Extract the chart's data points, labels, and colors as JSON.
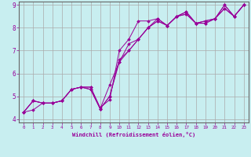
{
  "xlabel": "Windchill (Refroidissement éolien,°C)",
  "bg_color": "#c8eef0",
  "grid_color": "#aaaaaa",
  "line_color": "#990099",
  "xlim": [
    -0.5,
    23.5
  ],
  "ylim": [
    3.85,
    9.15
  ],
  "xticks": [
    0,
    1,
    2,
    3,
    4,
    5,
    6,
    7,
    8,
    9,
    10,
    11,
    12,
    13,
    14,
    15,
    16,
    17,
    18,
    19,
    20,
    21,
    22,
    23
  ],
  "yticks": [
    4,
    5,
    6,
    7,
    8,
    9
  ],
  "series": [
    [
      4.3,
      4.8,
      4.7,
      4.7,
      4.8,
      5.3,
      5.4,
      5.4,
      4.5,
      4.85,
      7.0,
      7.5,
      8.3,
      8.3,
      8.4,
      8.1,
      8.5,
      8.6,
      8.2,
      8.2,
      8.4,
      8.85,
      8.5,
      9.0
    ],
    [
      4.3,
      4.8,
      4.7,
      4.7,
      4.8,
      5.3,
      5.4,
      5.4,
      4.45,
      5.5,
      6.5,
      7.3,
      7.5,
      8.0,
      8.3,
      8.1,
      8.5,
      8.6,
      8.2,
      8.2,
      8.4,
      8.85,
      8.5,
      9.0
    ],
    [
      4.3,
      4.8,
      4.7,
      4.7,
      4.8,
      5.3,
      5.4,
      5.3,
      4.45,
      5.0,
      6.6,
      7.0,
      7.5,
      8.0,
      8.4,
      8.1,
      8.5,
      8.7,
      8.2,
      8.3,
      8.4,
      9.0,
      8.5,
      9.0
    ],
    [
      4.3,
      4.4,
      4.7,
      4.7,
      4.8,
      5.3,
      5.4,
      5.3,
      4.45,
      5.0,
      6.5,
      7.0,
      7.5,
      8.0,
      8.3,
      8.1,
      8.5,
      8.7,
      8.2,
      8.3,
      8.4,
      9.0,
      8.5,
      9.0
    ]
  ]
}
